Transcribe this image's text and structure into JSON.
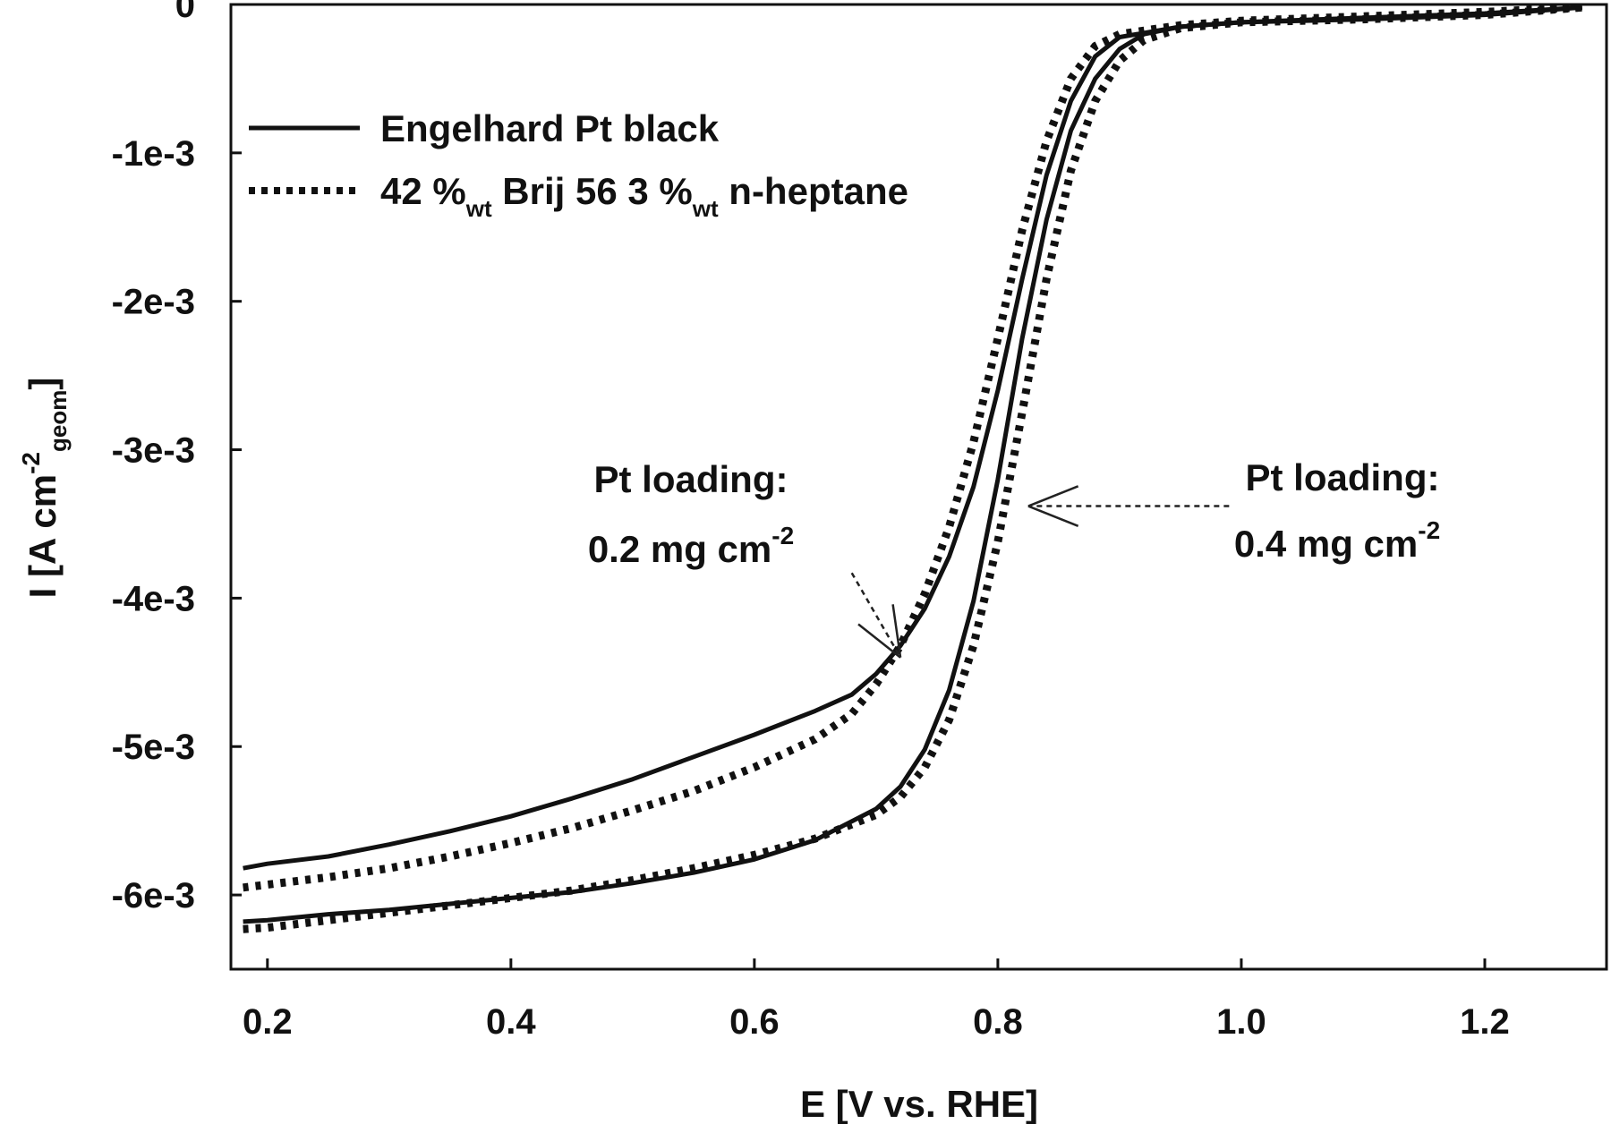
{
  "chart_data": {
    "type": "line",
    "title": "",
    "xlabel": "E [V vs. RHE]",
    "ylabel_parts": {
      "main": "I [A cm",
      "sup": "-2",
      "sub": "geom",
      "end": "]"
    },
    "xlim": [
      0.17,
      1.3
    ],
    "ylim": [
      -0.0065,
      0
    ],
    "x_ticks": [
      {
        "value": 0.2,
        "label": "0.2"
      },
      {
        "value": 0.4,
        "label": "0.4"
      },
      {
        "value": 0.6,
        "label": "0.6"
      },
      {
        "value": 0.8,
        "label": "0.8"
      },
      {
        "value": 1.0,
        "label": "1.0"
      },
      {
        "value": 1.2,
        "label": "1.2"
      }
    ],
    "y_ticks": [
      {
        "value": 0,
        "label": "0"
      },
      {
        "value": -0.001,
        "label": "-1e-3"
      },
      {
        "value": -0.002,
        "label": "-2e-3"
      },
      {
        "value": -0.003,
        "label": "-3e-3"
      },
      {
        "value": -0.004,
        "label": "-4e-3"
      },
      {
        "value": -0.005,
        "label": "-5e-3"
      },
      {
        "value": -0.006,
        "label": "-6e-3"
      }
    ],
    "grid": false,
    "legend_position": "top-left",
    "legend": [
      {
        "style": "solid",
        "label": "Engelhard Pt black"
      },
      {
        "style": "dotted",
        "label_parts": [
          "42 %",
          "wt",
          " Brij 56 3 %",
          "wt",
          " n-heptane"
        ]
      }
    ],
    "series": [
      {
        "group": "Engelhard Pt black",
        "loading": "0.2 mg cm-2",
        "style": "solid",
        "points": [
          [
            0.18,
            -0.00582
          ],
          [
            0.2,
            -0.00579
          ],
          [
            0.25,
            -0.00574
          ],
          [
            0.3,
            -0.00566
          ],
          [
            0.35,
            -0.00557
          ],
          [
            0.4,
            -0.00547
          ],
          [
            0.45,
            -0.00535
          ],
          [
            0.5,
            -0.00522
          ],
          [
            0.55,
            -0.00507
          ],
          [
            0.6,
            -0.00492
          ],
          [
            0.65,
            -0.00476
          ],
          [
            0.68,
            -0.00465
          ],
          [
            0.7,
            -0.00451
          ],
          [
            0.72,
            -0.00432
          ],
          [
            0.74,
            -0.00407
          ],
          [
            0.76,
            -0.00372
          ],
          [
            0.78,
            -0.00325
          ],
          [
            0.8,
            -0.0026
          ],
          [
            0.82,
            -0.00185
          ],
          [
            0.84,
            -0.00115
          ],
          [
            0.86,
            -0.00065
          ],
          [
            0.88,
            -0.00035
          ],
          [
            0.9,
            -0.00022
          ],
          [
            0.95,
            -0.00015
          ],
          [
            1.0,
            -0.00012
          ],
          [
            1.1,
            -9e-05
          ],
          [
            1.2,
            -6e-05
          ],
          [
            1.28,
            -2e-05
          ]
        ]
      },
      {
        "group": "42 %wt Brij 56 3 %wt n-heptane",
        "loading": "0.2 mg cm-2",
        "style": "dotted",
        "points": [
          [
            0.18,
            -0.00595
          ],
          [
            0.2,
            -0.00593
          ],
          [
            0.25,
            -0.00588
          ],
          [
            0.3,
            -0.00582
          ],
          [
            0.35,
            -0.00574
          ],
          [
            0.4,
            -0.00565
          ],
          [
            0.45,
            -0.00555
          ],
          [
            0.5,
            -0.00543
          ],
          [
            0.55,
            -0.0053
          ],
          [
            0.6,
            -0.00514
          ],
          [
            0.65,
            -0.00495
          ],
          [
            0.68,
            -0.00478
          ],
          [
            0.7,
            -0.00458
          ],
          [
            0.72,
            -0.00432
          ],
          [
            0.74,
            -0.00397
          ],
          [
            0.76,
            -0.00352
          ],
          [
            0.78,
            -0.00295
          ],
          [
            0.8,
            -0.00225
          ],
          [
            0.82,
            -0.00152
          ],
          [
            0.84,
            -0.00092
          ],
          [
            0.86,
            -0.0005
          ],
          [
            0.88,
            -0.00028
          ],
          [
            0.9,
            -0.0002
          ],
          [
            0.95,
            -0.00014
          ],
          [
            1.0,
            -0.00011
          ],
          [
            1.1,
            -8e-05
          ],
          [
            1.2,
            -5e-05
          ],
          [
            1.28,
            -2e-05
          ]
        ]
      },
      {
        "group": "Engelhard Pt black",
        "loading": "0.4 mg cm-2",
        "style": "solid",
        "points": [
          [
            0.18,
            -0.00618
          ],
          [
            0.2,
            -0.00617
          ],
          [
            0.25,
            -0.00613
          ],
          [
            0.3,
            -0.0061
          ],
          [
            0.35,
            -0.00606
          ],
          [
            0.4,
            -0.00602
          ],
          [
            0.45,
            -0.00598
          ],
          [
            0.5,
            -0.00592
          ],
          [
            0.55,
            -0.00585
          ],
          [
            0.6,
            -0.00576
          ],
          [
            0.65,
            -0.00563
          ],
          [
            0.7,
            -0.00542
          ],
          [
            0.72,
            -0.00527
          ],
          [
            0.74,
            -0.00502
          ],
          [
            0.76,
            -0.00462
          ],
          [
            0.78,
            -0.00402
          ],
          [
            0.8,
            -0.0032
          ],
          [
            0.82,
            -0.00225
          ],
          [
            0.84,
            -0.00145
          ],
          [
            0.86,
            -0.00085
          ],
          [
            0.88,
            -0.0005
          ],
          [
            0.9,
            -0.0003
          ],
          [
            0.92,
            -0.0002
          ],
          [
            0.95,
            -0.00015
          ],
          [
            1.0,
            -0.00012
          ],
          [
            1.1,
            -0.0001
          ],
          [
            1.2,
            -7e-05
          ],
          [
            1.28,
            -2e-05
          ]
        ]
      },
      {
        "group": "42 %wt Brij 56 3 %wt n-heptane",
        "loading": "0.4 mg cm-2",
        "style": "dotted",
        "points": [
          [
            0.18,
            -0.00623
          ],
          [
            0.2,
            -0.00622
          ],
          [
            0.25,
            -0.00617
          ],
          [
            0.3,
            -0.00612
          ],
          [
            0.35,
            -0.00607
          ],
          [
            0.4,
            -0.00602
          ],
          [
            0.45,
            -0.00597
          ],
          [
            0.5,
            -0.0059
          ],
          [
            0.55,
            -0.00582
          ],
          [
            0.6,
            -0.00573
          ],
          [
            0.65,
            -0.00562
          ],
          [
            0.7,
            -0.00546
          ],
          [
            0.72,
            -0.00534
          ],
          [
            0.74,
            -0.00514
          ],
          [
            0.76,
            -0.00482
          ],
          [
            0.78,
            -0.00432
          ],
          [
            0.8,
            -0.00362
          ],
          [
            0.82,
            -0.00275
          ],
          [
            0.84,
            -0.00185
          ],
          [
            0.86,
            -0.00112
          ],
          [
            0.88,
            -0.00065
          ],
          [
            0.9,
            -0.00038
          ],
          [
            0.92,
            -0.00024
          ],
          [
            0.95,
            -0.00016
          ],
          [
            1.0,
            -0.00012
          ],
          [
            1.1,
            -0.0001
          ],
          [
            1.2,
            -7e-05
          ],
          [
            1.28,
            -2e-05
          ]
        ]
      }
    ],
    "annotations": [
      {
        "name": "loading-02",
        "line1": "Pt loading:",
        "line2_main": "0.2 mg cm",
        "line2_sup": "-2",
        "arrow_to": [
          0.72,
          -0.0044
        ],
        "arrow_from": [
          0.68,
          -0.00383
        ]
      },
      {
        "name": "loading-04",
        "line1": "Pt loading:",
        "line2_main": "0.4 mg cm",
        "line2_sup": "-2",
        "arrow_to": [
          0.825,
          -0.00338
        ],
        "arrow_from": [
          0.99,
          -0.00338
        ]
      }
    ]
  }
}
